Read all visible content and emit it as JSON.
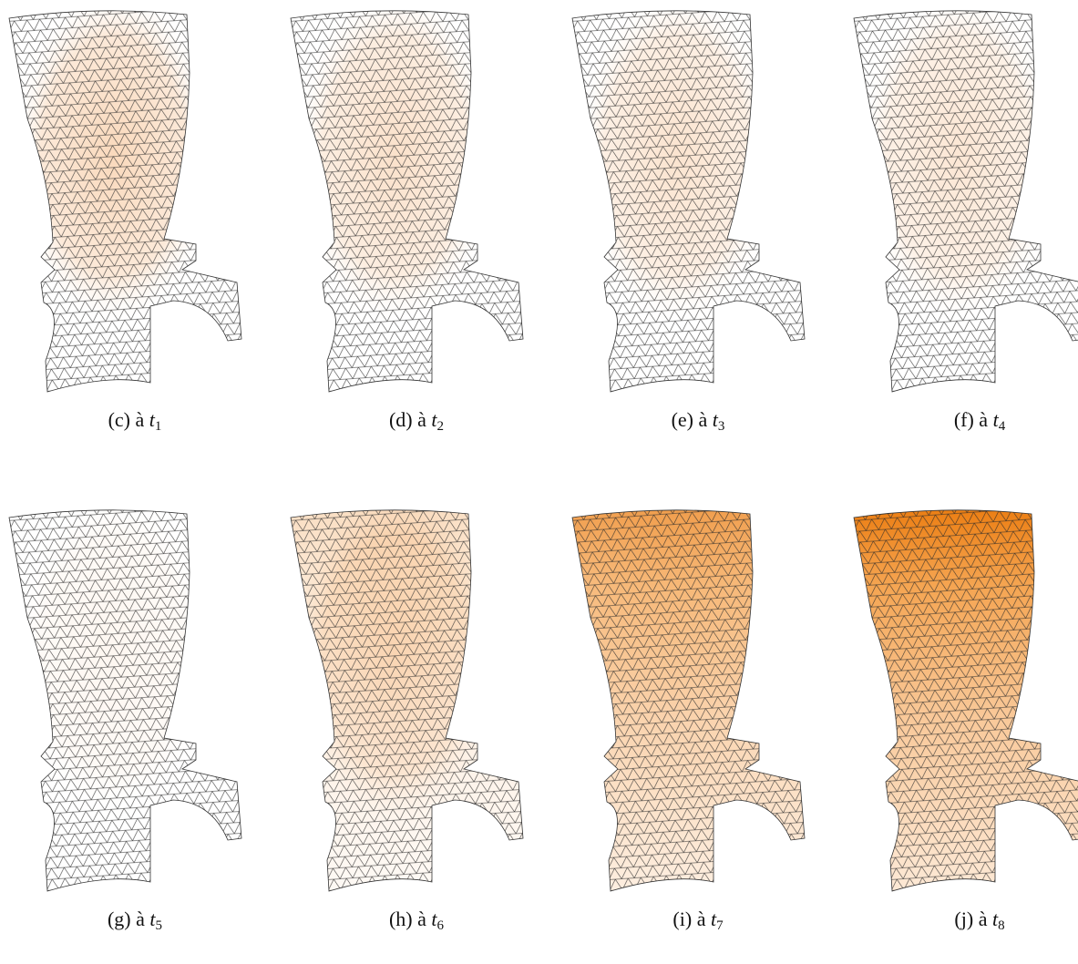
{
  "figure": {
    "panels": [
      {
        "tag": "(c)",
        "text": "à",
        "var": "t",
        "sub": "1"
      },
      {
        "tag": "(d)",
        "text": "à",
        "var": "t",
        "sub": "2"
      },
      {
        "tag": "(e)",
        "text": "à",
        "var": "t",
        "sub": "3"
      },
      {
        "tag": "(f)",
        "text": "à",
        "var": "t",
        "sub": "4"
      },
      {
        "tag": "(g)",
        "text": "à",
        "var": "t",
        "sub": "5"
      },
      {
        "tag": "(h)",
        "text": "à",
        "var": "t",
        "sub": "6"
      },
      {
        "tag": "(i)",
        "text": "à",
        "var": "t",
        "sub": "7"
      },
      {
        "tag": "(j)",
        "text": "à",
        "var": "t",
        "sub": "8"
      }
    ]
  }
}
